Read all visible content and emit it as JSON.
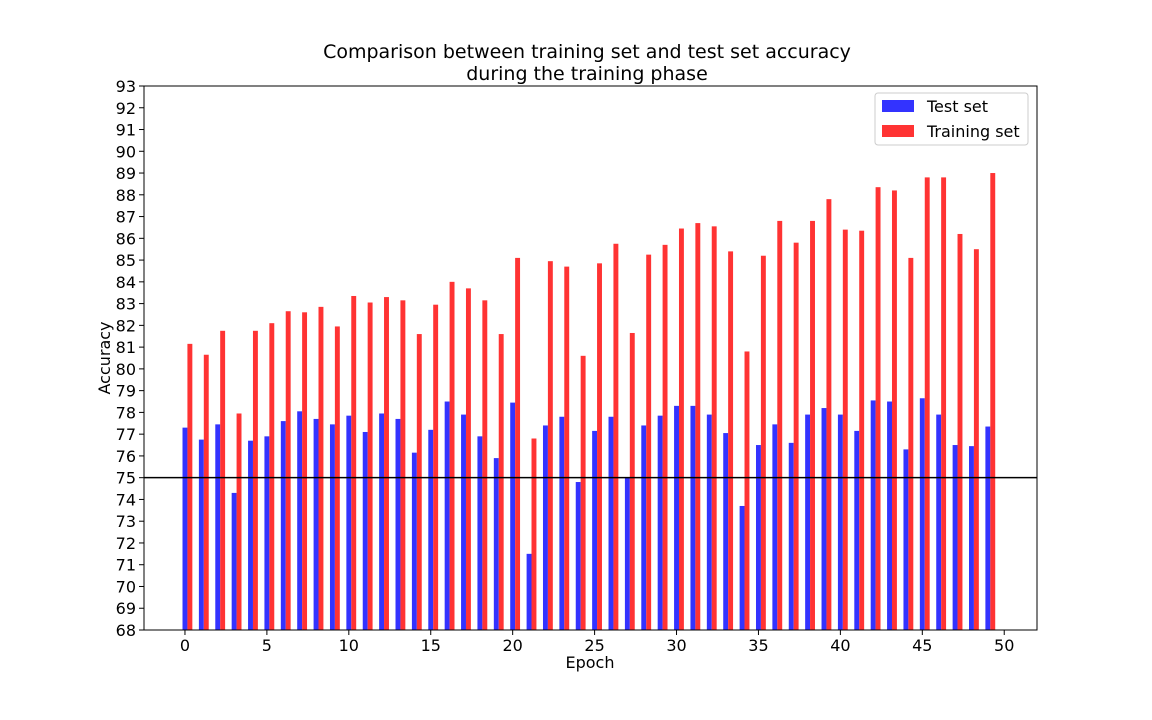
{
  "chart_data": {
    "type": "bar",
    "title_line1": "Comparison between training set and test set accuracy",
    "title_line2": "during the training phase",
    "xlabel": "Epoch",
    "ylabel": "Accuracy",
    "ylim": [
      68,
      93
    ],
    "xlim": [
      -2.5,
      52
    ],
    "xticks": [
      0,
      5,
      10,
      15,
      20,
      25,
      30,
      35,
      40,
      45,
      50
    ],
    "yticks": [
      68,
      69,
      70,
      71,
      72,
      73,
      74,
      75,
      76,
      77,
      78,
      79,
      80,
      81,
      82,
      83,
      84,
      85,
      86,
      87,
      88,
      89,
      90,
      91,
      92,
      93
    ],
    "reference_line_y": 75,
    "legend_position": "top-right",
    "x": [
      0,
      1,
      2,
      3,
      4,
      5,
      6,
      7,
      8,
      9,
      10,
      11,
      12,
      13,
      14,
      15,
      16,
      17,
      18,
      19,
      20,
      21,
      22,
      23,
      24,
      25,
      26,
      27,
      28,
      29,
      30,
      31,
      32,
      33,
      34,
      35,
      36,
      37,
      38,
      39,
      40,
      41,
      42,
      43,
      44,
      45,
      46,
      47,
      48,
      49
    ],
    "series": [
      {
        "name": "Test set",
        "color": "#3333ff",
        "values": [
          77.3,
          76.75,
          77.45,
          74.3,
          76.7,
          76.9,
          77.6,
          78.05,
          77.7,
          77.45,
          77.85,
          77.1,
          77.95,
          77.7,
          76.15,
          77.2,
          78.5,
          77.9,
          76.9,
          75.9,
          78.45,
          71.5,
          77.4,
          77.8,
          74.8,
          77.15,
          77.8,
          75.0,
          77.4,
          77.85,
          78.3,
          78.3,
          77.9,
          77.05,
          73.7,
          76.5,
          77.45,
          76.6,
          77.9,
          78.2,
          77.9,
          77.15,
          78.55,
          78.5,
          76.3,
          78.65,
          77.9,
          76.5,
          76.45,
          77.35
        ]
      },
      {
        "name": "Training set",
        "color": "#ff3333",
        "values": [
          81.15,
          80.65,
          81.75,
          77.95,
          81.75,
          82.1,
          82.65,
          82.6,
          82.85,
          81.95,
          83.35,
          83.05,
          83.3,
          83.15,
          81.6,
          82.95,
          84.0,
          83.7,
          83.15,
          81.6,
          85.1,
          76.8,
          84.95,
          84.7,
          80.6,
          84.85,
          85.75,
          81.65,
          85.25,
          85.7,
          86.45,
          86.7,
          86.55,
          85.4,
          80.8,
          85.2,
          86.8,
          85.8,
          86.8,
          87.8,
          86.4,
          86.35,
          88.35,
          88.2,
          85.1,
          88.8,
          88.8,
          86.2,
          85.5,
          89.0
        ]
      }
    ]
  }
}
